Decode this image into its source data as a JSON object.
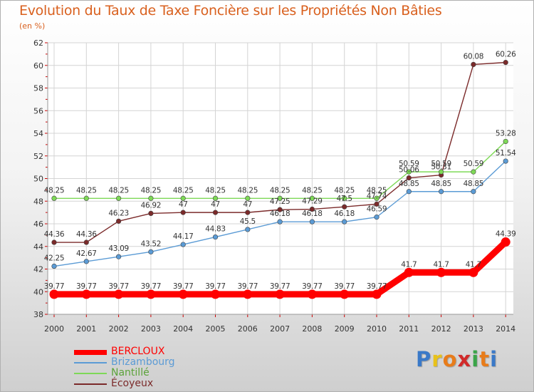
{
  "title": "Evolution du Taux de Taxe Foncière sur les Propriétés Non Bâties",
  "subtitle": "(en %)",
  "logo": {
    "letters": [
      "P",
      "r",
      "o",
      "x",
      "i",
      "t",
      "i"
    ],
    "colors": [
      "#3a79c8",
      "#e8c21a",
      "#e87c1a",
      "#d12a2a",
      "#3aa548",
      "#e87c1a",
      "#3a79c8"
    ]
  },
  "chart_data": {
    "type": "line",
    "title": "Evolution du Taux de Taxe Foncière sur les Propriétés Non Bâties",
    "ylabel": "(en %)",
    "x": [
      "2000",
      "2001",
      "2002",
      "2003",
      "2004",
      "2005",
      "2006",
      "2007",
      "2008",
      "2009",
      "2010",
      "2011",
      "2012",
      "2013",
      "2014"
    ],
    "ylim": [
      38,
      62
    ],
    "yticks": [
      "38",
      "40",
      "42",
      "44",
      "46",
      "48",
      "50",
      "52",
      "54",
      "56",
      "58",
      "60",
      "62"
    ],
    "grid": true,
    "legend_position": "bottom-left",
    "series": [
      {
        "name": "BERCLOUX",
        "color": "#ff0000",
        "values": [
          39.77,
          39.77,
          39.77,
          39.77,
          39.77,
          39.77,
          39.77,
          39.77,
          39.77,
          39.77,
          39.77,
          41.7,
          41.7,
          41.7,
          44.39
        ],
        "labels": [
          "39.77",
          "39.77",
          "39.77",
          "39.77",
          "39.77",
          "39.77",
          "39.77",
          "39.77",
          "39.77",
          "39.77",
          "39.77",
          "41.7",
          "41.7",
          "41.7",
          "44.39"
        ]
      },
      {
        "name": "Brizambourg",
        "color": "#5b9bd5",
        "values": [
          42.25,
          42.67,
          43.09,
          43.52,
          44.17,
          44.83,
          45.5,
          46.18,
          46.18,
          46.18,
          46.59,
          48.85,
          48.85,
          48.85,
          51.54
        ],
        "labels": [
          "42.25",
          "42.67",
          "43.09",
          "43.52",
          "44.17",
          "44.83",
          "45.5",
          "46.18",
          "46.18",
          "46.18",
          "46.59",
          "48.85",
          "48.85",
          "48.85",
          "51.54"
        ]
      },
      {
        "name": "Nantillé",
        "color": "#7ed957",
        "values": [
          48.25,
          48.25,
          48.25,
          48.25,
          48.25,
          48.25,
          48.25,
          48.25,
          48.25,
          48.25,
          48.25,
          50.59,
          50.59,
          50.59,
          53.28
        ],
        "labels": [
          "48.25",
          "48.25",
          "48.25",
          "48.25",
          "48.25",
          "48.25",
          "48.25",
          "48.25",
          "48.25",
          "48.25",
          "48.25",
          "50.59",
          "50.59",
          "50.59",
          "53.28"
        ]
      },
      {
        "name": "Écoyeux",
        "color": "#7b2a2a",
        "values": [
          44.36,
          44.36,
          46.23,
          46.92,
          47,
          47,
          47,
          47.25,
          47.29,
          47.5,
          47.74,
          50.06,
          50.31,
          60.08,
          60.26
        ],
        "labels": [
          "44.36",
          "44.36",
          "46.23",
          "46.92",
          "47",
          "47",
          "47",
          "47.25",
          "47.29",
          "47.5",
          "47.74",
          "50.06",
          "50.31",
          "60.08",
          "60.26"
        ]
      }
    ]
  }
}
